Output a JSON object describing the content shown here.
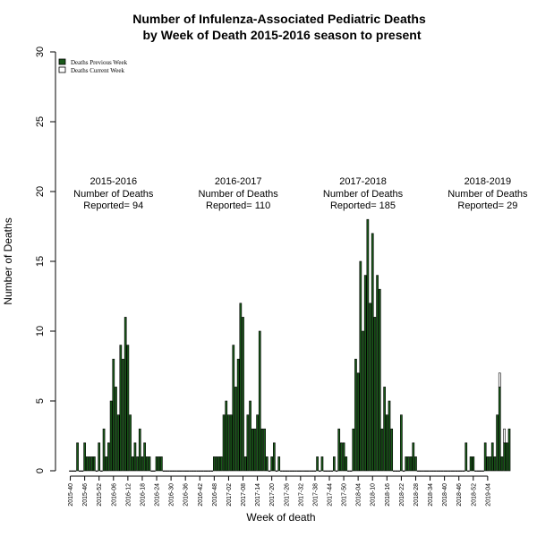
{
  "chart_data": {
    "type": "bar",
    "stacked": true,
    "title": [
      "Number of Infulenza-Associated Pediatric Deaths",
      "by Week of Death 2015-2016 season to present"
    ],
    "xlabel": "Week of death",
    "ylabel": "Number of Deaths",
    "ylim": [
      0,
      30
    ],
    "yticks": [
      0,
      5,
      10,
      15,
      20,
      25,
      30
    ],
    "xtick_labels": [
      "2015-40",
      "2015-46",
      "2015-52",
      "2016-06",
      "2016-12",
      "2016-18",
      "2016-24",
      "2016-30",
      "2016-36",
      "2016-42",
      "2016-48",
      "2017-02",
      "2017-08",
      "2017-14",
      "2017-20",
      "2017-26",
      "2017-32",
      "2017-38",
      "2017-44",
      "2017-50",
      "2018-04",
      "2018-10",
      "2018-16",
      "2018-22",
      "2018-28",
      "2018-34",
      "2018-40",
      "2018-46",
      "2018-52",
      "2019-04"
    ],
    "xtick_index": [
      0,
      6,
      12,
      18,
      24,
      30,
      36,
      42,
      48,
      54,
      60,
      66,
      72,
      78,
      84,
      90,
      96,
      102,
      108,
      114,
      120,
      126,
      132,
      138,
      144,
      150,
      156,
      162,
      168,
      174
    ],
    "legend": {
      "position": "top-left",
      "entries": [
        "Deaths Previous Week",
        "Deaths Current Week"
      ]
    },
    "colors": {
      "previous": "#1a5a1a",
      "current": "#ffffff",
      "edge": "#000000"
    },
    "series": [
      {
        "name": "Deaths Previous Week",
        "values": [
          0,
          0,
          0,
          2,
          0,
          0,
          2,
          1,
          1,
          1,
          1,
          0,
          2,
          0,
          3,
          1,
          2,
          5,
          8,
          6,
          4,
          9,
          8,
          11,
          9,
          4,
          1,
          2,
          1,
          3,
          1,
          2,
          1,
          1,
          0,
          0,
          1,
          1,
          1,
          0,
          0,
          0,
          0,
          0,
          0,
          0,
          0,
          0,
          0,
          0,
          0,
          0,
          0,
          0,
          0,
          0,
          0,
          0,
          0,
          0,
          1,
          1,
          1,
          1,
          4,
          5,
          4,
          4,
          9,
          6,
          8,
          12,
          11,
          1,
          4,
          5,
          3,
          3,
          4,
          10,
          3,
          3,
          1,
          0,
          1,
          2,
          0,
          1,
          0,
          0,
          0,
          0,
          0,
          0,
          0,
          0,
          0,
          0,
          0,
          0,
          0,
          0,
          0,
          1,
          0,
          1,
          0,
          0,
          0,
          0,
          1,
          0,
          3,
          2,
          2,
          1,
          0,
          0,
          3,
          8,
          7,
          15,
          10,
          14,
          18,
          12,
          17,
          11,
          14,
          13,
          3,
          6,
          4,
          5,
          3,
          0,
          0,
          0,
          4,
          0,
          1,
          1,
          1,
          2,
          1,
          0,
          0,
          0,
          0,
          0,
          0,
          0,
          0,
          0,
          0,
          0,
          0,
          0,
          0,
          0,
          0,
          0,
          0,
          0,
          0,
          2,
          0,
          1,
          1,
          0,
          0,
          0,
          0,
          2,
          1,
          1,
          2,
          1,
          4,
          6,
          1,
          2,
          2,
          3
        ]
      },
      {
        "name": "Deaths Current Week",
        "values": [
          0,
          0,
          0,
          0,
          0,
          0,
          0,
          0,
          0,
          0,
          0,
          0,
          0,
          0,
          0,
          0,
          0,
          0,
          0,
          0,
          0,
          0,
          0,
          0,
          0,
          0,
          0,
          0,
          0,
          0,
          0,
          0,
          0,
          0,
          0,
          0,
          0,
          0,
          0,
          0,
          0,
          0,
          0,
          0,
          0,
          0,
          0,
          0,
          0,
          0,
          0,
          0,
          0,
          0,
          0,
          0,
          0,
          0,
          0,
          0,
          0,
          0,
          0,
          0,
          0,
          0,
          0,
          0,
          0,
          0,
          0,
          0,
          0,
          0,
          0,
          0,
          0,
          0,
          0,
          0,
          0,
          0,
          0,
          0,
          0,
          0,
          0,
          0,
          0,
          0,
          0,
          0,
          0,
          0,
          0,
          0,
          0,
          0,
          0,
          0,
          0,
          0,
          0,
          0,
          0,
          0,
          0,
          0,
          0,
          0,
          0,
          0,
          0,
          0,
          0,
          0,
          0,
          0,
          0,
          0,
          0,
          0,
          0,
          0,
          0,
          0,
          0,
          0,
          0,
          0,
          0,
          0,
          0,
          0,
          0,
          0,
          0,
          0,
          0,
          0,
          0,
          0,
          0,
          0,
          0,
          0,
          0,
          0,
          0,
          0,
          0,
          0,
          0,
          0,
          0,
          0,
          0,
          0,
          0,
          0,
          0,
          0,
          0,
          0,
          0,
          0,
          0,
          0,
          0,
          0,
          0,
          0,
          0,
          0,
          0,
          0,
          0,
          0,
          0,
          1,
          0,
          1,
          0,
          0
        ]
      }
    ],
    "annotations": [
      {
        "season": "2015-2016",
        "line2": "Number of Deaths",
        "line3": "Reported= 94",
        "at_index": 18
      },
      {
        "season": "2016-2017",
        "line2": "Number of Deaths",
        "line3": "Reported= 110",
        "at_index": 70
      },
      {
        "season": "2017-2018",
        "line2": "Number of Deaths",
        "line3": "Reported= 185",
        "at_index": 122
      },
      {
        "season": "2018-2019",
        "line2": "Number of Deaths",
        "line3": "Reported= 29",
        "at_index": 174
      }
    ]
  }
}
